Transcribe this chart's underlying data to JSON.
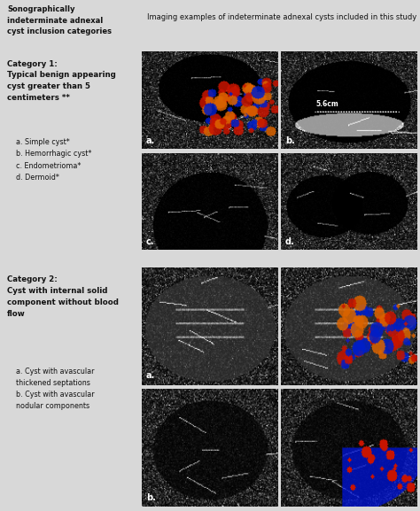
{
  "bg_color": "#d8d8d8",
  "header_left_bg": "#d0d0d0",
  "header_right_bg": "#d8d8d8",
  "body_left_bg": "#f0f0f0",
  "body_right_bg": "#ffffff",
  "divider_color": "#aaaaaa",
  "text_color": "#111111",
  "header_text_left": "Sonographically\nindeterminate adnexal\ncyst inclusion categories",
  "header_text_right": "Imaging examples of indeterminate adnexal cysts included in this study",
  "cat1_title": "Category 1:\nTypical benign appearing\ncyst greater than 5\ncentimeters **",
  "cat1_items": "    a. Simple cyst*\n    b. Hemorrhagic cyst*\n    c. Endometrioma*\n    d. Dermoid*",
  "cat2_title": "Category 2:\nCyst with internal solid\ncomponent without blood\nflow",
  "cat2_items": "    a. Cyst with avascular\n    thickened septations\n    b. Cyst with avascular\n    nodular components",
  "annotation_5_6cm": "5.6cm",
  "label_a": "a.",
  "label_b": "b.",
  "label_c": "c.",
  "label_d": "d.",
  "fig_width": 4.74,
  "fig_height": 5.77,
  "dpi": 100,
  "font_size_header": 6.0,
  "font_size_cat_title": 6.2,
  "font_size_items": 5.8,
  "font_size_label": 7.0,
  "red1": "#cc1100",
  "red2": "#ee3300",
  "blue1": "#0022bb",
  "blue2": "#2255dd",
  "orange1": "#ff6600",
  "cyan1": "#0088ff"
}
